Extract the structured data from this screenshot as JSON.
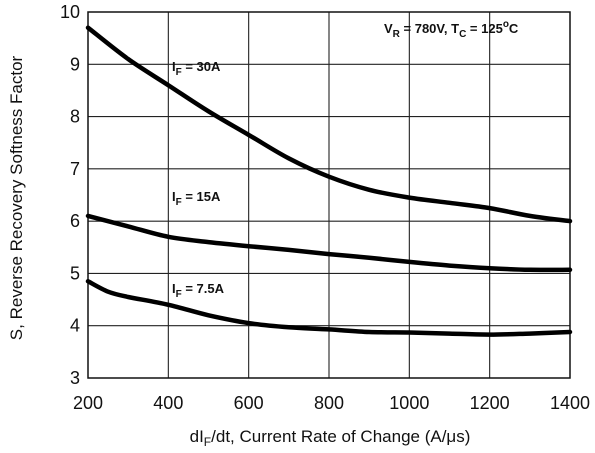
{
  "chart_data": {
    "type": "line",
    "title": "",
    "xlabel": "dI",
    "xlabel_sub": "F",
    "xlabel_rest": "/dt, Current Rate of Change (A/μs)",
    "ylabel": "S, Reverse Recovery Softness Factor",
    "xlim": [
      200,
      1400
    ],
    "ylim": [
      3,
      10
    ],
    "xticks": [
      "200",
      "400",
      "600",
      "800",
      "1000",
      "1200",
      "1400"
    ],
    "yticks": [
      "3",
      "4",
      "5",
      "6",
      "7",
      "8",
      "9",
      "10"
    ],
    "grid": true,
    "conditions": {
      "vr_main": "V",
      "vr_sub": "R",
      "vr_rest": " = 780V, T",
      "tc_sub": "C",
      "tc_rest": " = 125",
      "deg": "o",
      "unit": "C"
    },
    "series": [
      {
        "name": "IF = 30A",
        "label_main": "I",
        "label_sub": "F",
        "label_rest": " = 30A",
        "x": [
          200,
          300,
          400,
          500,
          600,
          700,
          800,
          900,
          1000,
          1100,
          1200,
          1300,
          1400
        ],
        "y": [
          9.7,
          9.1,
          8.6,
          8.1,
          7.65,
          7.2,
          6.85,
          6.6,
          6.45,
          6.35,
          6.25,
          6.1,
          6.0
        ]
      },
      {
        "name": "IF = 15A",
        "label_main": "I",
        "label_sub": "F",
        "label_rest": " = 15A",
        "x": [
          200,
          300,
          400,
          500,
          600,
          700,
          800,
          900,
          1000,
          1100,
          1200,
          1300,
          1400
        ],
        "y": [
          6.1,
          5.9,
          5.7,
          5.6,
          5.52,
          5.45,
          5.37,
          5.3,
          5.22,
          5.15,
          5.1,
          5.07,
          5.07
        ]
      },
      {
        "name": "IF = 7.5A",
        "label_main": "I",
        "label_sub": "F",
        "label_rest": " = 7.5A",
        "x": [
          200,
          250,
          300,
          400,
          500,
          600,
          700,
          800,
          900,
          1000,
          1100,
          1200,
          1300,
          1400
        ],
        "y": [
          4.85,
          4.65,
          4.55,
          4.4,
          4.2,
          4.05,
          3.97,
          3.93,
          3.88,
          3.87,
          3.85,
          3.83,
          3.85,
          3.88
        ]
      }
    ]
  }
}
